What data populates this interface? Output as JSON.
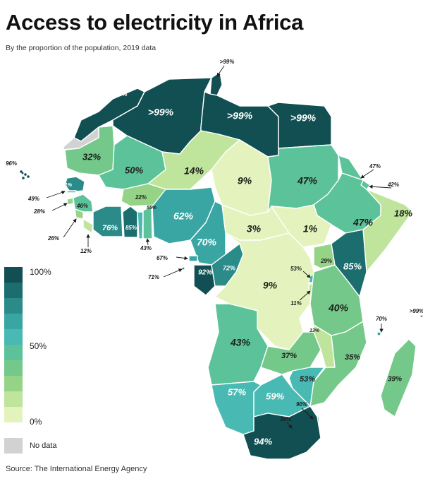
{
  "title": "Access to electricity in Africa",
  "subtitle": "By the proportion of the population, 2019 data",
  "source": "Source: The International Energy Agency",
  "legend": {
    "ticks": [
      "100%",
      "50%",
      "0%"
    ],
    "no_data": "No data",
    "colors": [
      "#114f52",
      "#1b6d6e",
      "#2a8b89",
      "#39a6a3",
      "#48b9b3",
      "#5cc29a",
      "#74c98a",
      "#95d487",
      "#bfe49c",
      "#e4f3bd"
    ]
  },
  "colors": {
    "no_data": "#d2d2d2",
    "border": "#ffffff"
  },
  "regions": [
    {
      "name": "Morocco",
      "value": ">99%",
      "pct": 100
    },
    {
      "name": "Western Sahara",
      "value": "",
      "pct": null
    },
    {
      "name": "Algeria",
      "value": ">99%",
      "pct": 100
    },
    {
      "name": "Tunisia",
      "value": ">99%",
      "pct": 100
    },
    {
      "name": "Libya",
      "value": ">99%",
      "pct": 100
    },
    {
      "name": "Egypt",
      "value": ">99%",
      "pct": 100
    },
    {
      "name": "Mauritania",
      "value": "32%",
      "pct": 32
    },
    {
      "name": "Mali",
      "value": "50%",
      "pct": 50
    },
    {
      "name": "Niger",
      "value": "14%",
      "pct": 14
    },
    {
      "name": "Chad",
      "value": "9%",
      "pct": 9
    },
    {
      "name": "Sudan",
      "value": "47%",
      "pct": 47
    },
    {
      "name": "Eritrea",
      "value": "47%",
      "pct": 47
    },
    {
      "name": "Djibouti",
      "value": "42%",
      "pct": 42
    },
    {
      "name": "Ethiopia",
      "value": "47%",
      "pct": 47
    },
    {
      "name": "Somalia",
      "value": "18%",
      "pct": 18
    },
    {
      "name": "Senegal",
      "value": "71%",
      "pct": 71
    },
    {
      "name": "Gambia",
      "value": "49%",
      "pct": 49
    },
    {
      "name": "Guinea-Bissau",
      "value": "28%",
      "pct": 28
    },
    {
      "name": "Guinea",
      "value": "46%",
      "pct": 46
    },
    {
      "name": "Sierra Leone",
      "value": "26%",
      "pct": 26
    },
    {
      "name": "Liberia",
      "value": "12%",
      "pct": 12
    },
    {
      "name": "Burkina Faso",
      "value": "22%",
      "pct": 22
    },
    {
      "name": "Cote d'Ivoire",
      "value": "76%",
      "pct": 76
    },
    {
      "name": "Ghana",
      "value": "85%",
      "pct": 85
    },
    {
      "name": "Togo",
      "value": "55%",
      "pct": 55
    },
    {
      "name": "Benin",
      "value": "43%",
      "pct": 43
    },
    {
      "name": "Nigeria",
      "value": "62%",
      "pct": 62
    },
    {
      "name": "Cameroon",
      "value": "70%",
      "pct": 70
    },
    {
      "name": "Central African Republic",
      "value": "3%",
      "pct": 3
    },
    {
      "name": "South Sudan",
      "value": "1%",
      "pct": 1
    },
    {
      "name": "Equatorial Guinea",
      "value": "67%",
      "pct": 67
    },
    {
      "name": "Gabon",
      "value": "92%",
      "pct": 92
    },
    {
      "name": "Congo",
      "value": "72%",
      "pct": 72
    },
    {
      "name": "DR Congo",
      "value": "9%",
      "pct": 9
    },
    {
      "name": "Uganda",
      "value": "29%",
      "pct": 29
    },
    {
      "name": "Kenya",
      "value": "85%",
      "pct": 85
    },
    {
      "name": "Rwanda",
      "value": "53%",
      "pct": 53
    },
    {
      "name": "Burundi",
      "value": "11%",
      "pct": 11
    },
    {
      "name": "Tanzania",
      "value": "40%",
      "pct": 40
    },
    {
      "name": "Angola",
      "value": "43%",
      "pct": 43
    },
    {
      "name": "Zambia",
      "value": "37%",
      "pct": 37
    },
    {
      "name": "Malawi",
      "value": "13%",
      "pct": 13
    },
    {
      "name": "Mozambique",
      "value": "35%",
      "pct": 35
    },
    {
      "name": "Madagascar",
      "value": "39%",
      "pct": 39
    },
    {
      "name": "Comoros",
      "value": "70%",
      "pct": 70
    },
    {
      "name": "Seychelles",
      "value": ">99%",
      "pct": 100
    },
    {
      "name": "Zimbabwe",
      "value": "53%",
      "pct": 53
    },
    {
      "name": "Namibia",
      "value": "57%",
      "pct": 57
    },
    {
      "name": "Botswana",
      "value": "59%",
      "pct": 59
    },
    {
      "name": "Eswatini",
      "value": "90%",
      "pct": 90
    },
    {
      "name": "Lesotho",
      "value": "36%",
      "pct": 36
    },
    {
      "name": "South Africa",
      "value": "94%",
      "pct": 94
    },
    {
      "name": "Cabo Verde",
      "value": "96%",
      "pct": 96
    },
    {
      "name": "Sao Tome and Principe",
      "value": "71%",
      "pct": 71
    }
  ]
}
